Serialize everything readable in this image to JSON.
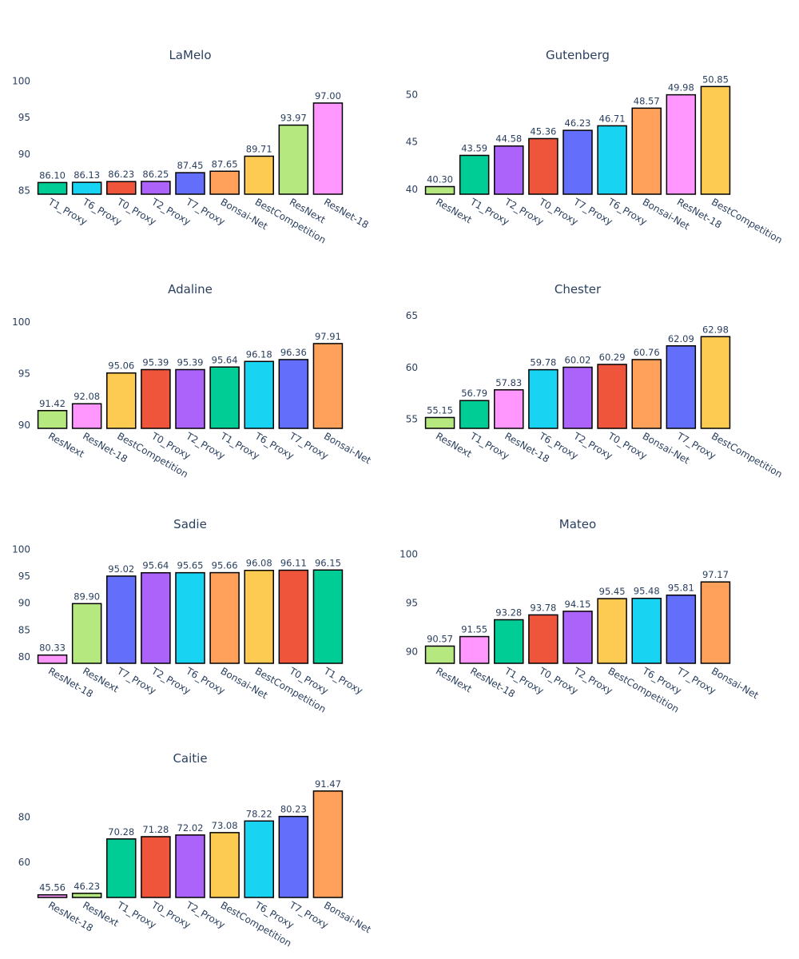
{
  "colors": {
    "ResNext": "#B6E880",
    "T1_Proxy": "#00CC96",
    "T6_Proxy": "#19D3F3",
    "T0_Proxy": "#EF553B",
    "T2_Proxy": "#AB63FA",
    "T7_Proxy": "#636EFA",
    "Bonsai-Net": "#FFA15A",
    "BestCompetition": "#FECB52",
    "ResNet-18": "#FF97FF"
  },
  "chart_data": [
    {
      "type": "bar",
      "title": "LaMelo",
      "categories": [
        "T1_Proxy",
        "T6_Proxy",
        "T0_Proxy",
        "T2_Proxy",
        "T7_Proxy",
        "Bonsai-Net",
        "BestCompetition",
        "ResNext",
        "ResNet-18"
      ],
      "values": [
        86.1,
        86.13,
        86.23,
        86.25,
        87.45,
        87.65,
        89.71,
        93.97,
        97.0
      ],
      "value_labels": [
        "86.10",
        "86.13",
        "86.23",
        "86.25",
        "87.45",
        "87.65",
        "89.71",
        "93.97",
        "97.00"
      ],
      "ylim": [
        84.5,
        100.5
      ],
      "yticks": [
        85,
        90,
        95,
        100
      ],
      "grid": false
    },
    {
      "type": "bar",
      "title": "Gutenberg",
      "categories": [
        "ResNext",
        "T1_Proxy",
        "T2_Proxy",
        "T0_Proxy",
        "T7_Proxy",
        "T6_Proxy",
        "Bonsai-Net",
        "ResNet-18",
        "BestCompetition"
      ],
      "values": [
        40.3,
        43.59,
        44.58,
        45.36,
        46.23,
        46.71,
        48.57,
        49.98,
        50.85
      ],
      "value_labels": [
        "40.30",
        "43.59",
        "44.58",
        "45.36",
        "46.23",
        "46.71",
        "48.57",
        "49.98",
        "50.85"
      ],
      "ylim": [
        39.5,
        51.8
      ],
      "yticks": [
        40,
        45,
        50
      ],
      "grid": false
    },
    {
      "type": "bar",
      "title": "Adaline",
      "categories": [
        "ResNext",
        "ResNet-18",
        "BestCompetition",
        "T0_Proxy",
        "T2_Proxy",
        "T1_Proxy",
        "T6_Proxy",
        "T7_Proxy",
        "Bonsai-Net"
      ],
      "values": [
        91.42,
        92.08,
        95.06,
        95.39,
        95.39,
        95.64,
        96.18,
        96.36,
        97.91
      ],
      "value_labels": [
        "91.42",
        "92.08",
        "95.06",
        "95.39",
        "95.39",
        "95.64",
        "96.18",
        "96.36",
        "97.91"
      ],
      "ylim": [
        89.7,
        101.0
      ],
      "yticks": [
        90,
        95,
        100
      ],
      "grid": false
    },
    {
      "type": "bar",
      "title": "Chester",
      "categories": [
        "ResNext",
        "T1_Proxy",
        "ResNet-18",
        "T6_Proxy",
        "T2_Proxy",
        "T0_Proxy",
        "Bonsai-Net",
        "T7_Proxy",
        "BestCompetition"
      ],
      "values": [
        55.15,
        56.79,
        57.83,
        59.78,
        60.02,
        60.29,
        60.76,
        62.09,
        62.98
      ],
      "value_labels": [
        "55.15",
        "56.79",
        "57.83",
        "59.78",
        "60.02",
        "60.29",
        "60.76",
        "62.09",
        "62.98"
      ],
      "ylim": [
        54.1,
        65.4
      ],
      "yticks": [
        55,
        60,
        65
      ],
      "grid": false
    },
    {
      "type": "bar",
      "title": "Sadie",
      "categories": [
        "ResNet-18",
        "ResNext",
        "T7_Proxy",
        "T2_Proxy",
        "T6_Proxy",
        "Bonsai-Net",
        "BestCompetition",
        "T0_Proxy",
        "T1_Proxy"
      ],
      "values": [
        80.33,
        89.9,
        95.02,
        95.64,
        95.65,
        95.66,
        96.08,
        96.11,
        96.15
      ],
      "value_labels": [
        "80.33",
        "89.90",
        "95.02",
        "95.64",
        "95.65",
        "95.66",
        "96.08",
        "96.11",
        "96.15"
      ],
      "ylim": [
        78.8,
        100.5
      ],
      "yticks": [
        80,
        85,
        90,
        95,
        100
      ],
      "grid": false
    },
    {
      "type": "bar",
      "title": "Mateo",
      "categories": [
        "ResNext",
        "ResNet-18",
        "T1_Proxy",
        "T0_Proxy",
        "T2_Proxy",
        "BestCompetition",
        "T6_Proxy",
        "T7_Proxy",
        "Bonsai-Net"
      ],
      "values": [
        90.57,
        91.55,
        93.28,
        93.78,
        94.15,
        95.45,
        95.48,
        95.81,
        97.17
      ],
      "value_labels": [
        "90.57",
        "91.55",
        "93.28",
        "93.78",
        "94.15",
        "95.45",
        "95.48",
        "95.81",
        "97.17"
      ],
      "ylim": [
        88.8,
        100.8
      ],
      "yticks": [
        90,
        95,
        100
      ],
      "grid": false
    },
    {
      "type": "bar",
      "title": "Caitie",
      "categories": [
        "ResNet-18",
        "ResNext",
        "T1_Proxy",
        "T0_Proxy",
        "T2_Proxy",
        "BestCompetition",
        "T6_Proxy",
        "T7_Proxy",
        "Bonsai-Net"
      ],
      "values": [
        45.56,
        46.23,
        70.28,
        71.28,
        72.02,
        73.08,
        78.22,
        80.23,
        91.47
      ],
      "value_labels": [
        "45.56",
        "46.23",
        "70.28",
        "71.28",
        "72.02",
        "73.08",
        "78.22",
        "80.23",
        "91.47"
      ],
      "ylim": [
        44.4,
        96.0
      ],
      "yticks": [
        60,
        80
      ],
      "grid": false
    }
  ]
}
